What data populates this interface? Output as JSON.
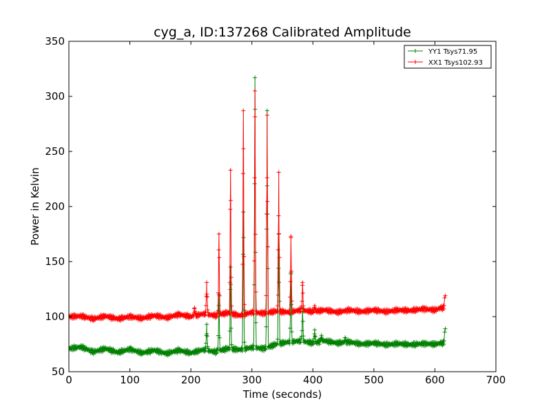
{
  "chart_data": {
    "type": "line",
    "title": "cyg_a, ID:137268 Calibrated Amplitude",
    "xlabel": "Time (seconds)",
    "ylabel": "Power in Kelvin",
    "xlim": [
      0,
      700
    ],
    "ylim": [
      50,
      350
    ],
    "xticks": [
      0,
      100,
      200,
      300,
      400,
      500,
      600,
      700
    ],
    "yticks": [
      50,
      100,
      150,
      200,
      250,
      300,
      350
    ],
    "grid": false,
    "legend_position": "top-right",
    "series": [
      {
        "name": "YY1 Tsys71.95",
        "color": "#008000",
        "marker": "+",
        "x_range": [
          0,
          615
        ],
        "baseline": [
          [
            0,
            71
          ],
          [
            20,
            72.5
          ],
          [
            40,
            68
          ],
          [
            60,
            71
          ],
          [
            80,
            67.5
          ],
          [
            100,
            70.5
          ],
          [
            120,
            67
          ],
          [
            140,
            69.5
          ],
          [
            160,
            66.5
          ],
          [
            180,
            69.5
          ],
          [
            200,
            67
          ],
          [
            220,
            70
          ],
          [
            240,
            68
          ],
          [
            260,
            71
          ],
          [
            280,
            70
          ],
          [
            300,
            72
          ],
          [
            320,
            71
          ],
          [
            340,
            75
          ],
          [
            360,
            77
          ],
          [
            380,
            78
          ],
          [
            400,
            76
          ],
          [
            420,
            78
          ],
          [
            440,
            76
          ],
          [
            460,
            77
          ],
          [
            480,
            75
          ],
          [
            500,
            76
          ],
          [
            520,
            74.5
          ],
          [
            540,
            75.5
          ],
          [
            560,
            74.5
          ],
          [
            580,
            75.5
          ],
          [
            600,
            75
          ],
          [
            610,
            76
          ]
        ],
        "spikes": [
          [
            226,
            93
          ],
          [
            246,
            120
          ],
          [
            265,
            145
          ],
          [
            286,
            195
          ],
          [
            305,
            317
          ],
          [
            325,
            287
          ],
          [
            344,
            175
          ],
          [
            364,
            140
          ],
          [
            383,
            107
          ],
          [
            403,
            88
          ],
          [
            414,
            83
          ],
          [
            453,
            81
          ]
        ],
        "end_points": [
          [
            615,
            78
          ],
          [
            616,
            86
          ],
          [
            617,
            89
          ]
        ]
      },
      {
        "name": "XX1 Tsys102.93",
        "color": "#ff0000",
        "marker": "+",
        "x_range": [
          0,
          615
        ],
        "baseline": [
          [
            0,
            100
          ],
          [
            20,
            100.5
          ],
          [
            40,
            98
          ],
          [
            60,
            100.5
          ],
          [
            80,
            98
          ],
          [
            100,
            100
          ],
          [
            120,
            98.5
          ],
          [
            140,
            101
          ],
          [
            160,
            99
          ],
          [
            180,
            102
          ],
          [
            200,
            100
          ],
          [
            220,
            102.5
          ],
          [
            240,
            101
          ],
          [
            260,
            103.5
          ],
          [
            280,
            101
          ],
          [
            300,
            104
          ],
          [
            320,
            103
          ],
          [
            340,
            105
          ],
          [
            360,
            104
          ],
          [
            380,
            106
          ],
          [
            400,
            104.5
          ],
          [
            420,
            106
          ],
          [
            440,
            104
          ],
          [
            460,
            106
          ],
          [
            480,
            104.5
          ],
          [
            500,
            106
          ],
          [
            520,
            104.5
          ],
          [
            540,
            106
          ],
          [
            560,
            105.5
          ],
          [
            580,
            107
          ],
          [
            600,
            106
          ],
          [
            610,
            108
          ]
        ],
        "spikes": [
          [
            206,
            108
          ],
          [
            226,
            131
          ],
          [
            246,
            175
          ],
          [
            265,
            233
          ],
          [
            286,
            287
          ],
          [
            305,
            305
          ],
          [
            325,
            283
          ],
          [
            344,
            231
          ],
          [
            364,
            173
          ],
          [
            383,
            131
          ],
          [
            403,
            110
          ]
        ],
        "end_points": [
          [
            615,
            110
          ],
          [
            616,
            117
          ],
          [
            617,
            119
          ]
        ]
      }
    ]
  }
}
